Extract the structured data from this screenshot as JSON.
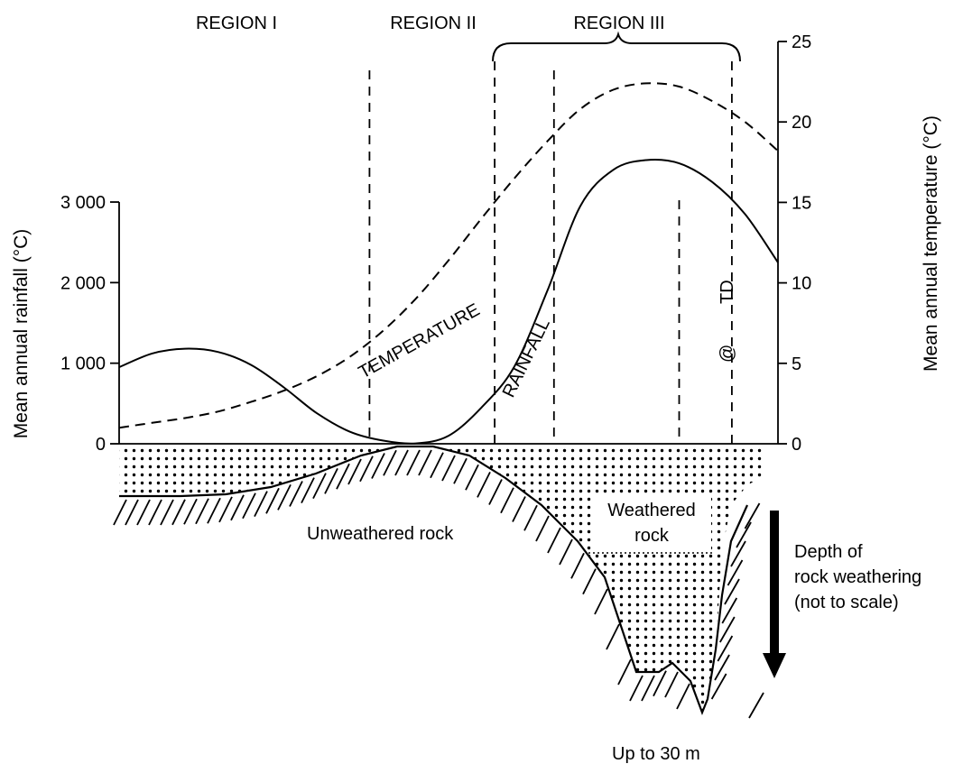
{
  "chart_data": {
    "type": "line",
    "regions": [
      "REGION I",
      "REGION II",
      "REGION III"
    ],
    "left_axis": {
      "label": "Mean annual rainfall (°C)",
      "range": [
        0,
        3000
      ],
      "ticks": [
        0,
        1000,
        2000,
        3000
      ],
      "tick_labels": [
        "0",
        "1 000",
        "2 000",
        "3 000"
      ]
    },
    "right_axis": {
      "label": "Mean annual temperature (°C)",
      "range": [
        0,
        25
      ],
      "ticks": [
        0,
        5,
        10,
        15,
        20,
        25
      ],
      "tick_labels": [
        "0",
        "5",
        "10",
        "15",
        "20",
        "25"
      ]
    },
    "series": [
      {
        "name": "TEMPERATURE",
        "axis": "right",
        "style": "dashed",
        "x": [
          0,
          5,
          10,
          15,
          20,
          25,
          30,
          35,
          40,
          45,
          50,
          55,
          60,
          65,
          70,
          75,
          80,
          85,
          90,
          95,
          100
        ],
        "values": [
          1,
          1.3,
          1.6,
          2,
          2.6,
          3.3,
          4.2,
          5.4,
          7,
          9,
          11.4,
          14,
          16.5,
          18.8,
          20.8,
          22,
          22.4,
          22.2,
          21.3,
          20,
          18.2
        ]
      },
      {
        "name": "RAINFALL",
        "axis": "left",
        "style": "solid",
        "x": [
          0,
          5,
          10,
          15,
          20,
          25,
          30,
          35,
          40,
          45,
          50,
          55,
          60,
          65,
          70,
          75,
          80,
          85,
          90,
          95,
          100
        ],
        "values": [
          950,
          1120,
          1180,
          1140,
          980,
          700,
          380,
          150,
          40,
          5,
          100,
          450,
          960,
          1900,
          2950,
          3400,
          3520,
          3480,
          3250,
          2850,
          2250
        ]
      }
    ],
    "boundaries_x": [
      38,
      57,
      66,
      85,
      93
    ],
    "region_labels": [
      "REGION I",
      "REGION II",
      "REGION III"
    ],
    "annotations": [
      "TEMPERATURE",
      "RAINFALL",
      "TD",
      "@",
      "Unweathered rock",
      "Weathered rock",
      "Depth of",
      "rock weathering",
      "(not to scale)",
      "Up to 30 m"
    ],
    "lower_panel": {
      "unweathered_label": "Unweathered rock",
      "weathered_label_1": "Weathered",
      "weathered_label_2": "rock",
      "depth_label_1": "Depth of",
      "depth_label_2": "rock weathering",
      "depth_label_3": "(not to scale)",
      "max_depth_label": "Up to 30 m"
    },
    "marker_1": "TD",
    "marker_2": "@"
  }
}
